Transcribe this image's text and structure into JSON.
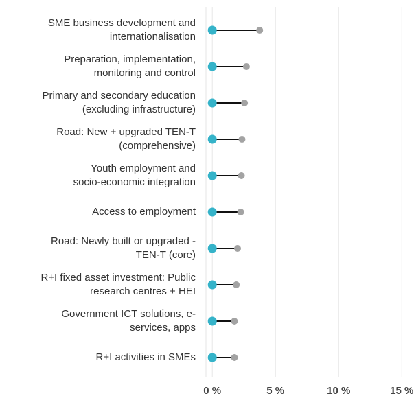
{
  "chart_data": {
    "type": "dumbbell",
    "categories": [
      [
        "SME business development and",
        "internationalisation"
      ],
      [
        "Preparation, implementation,",
        "monitoring and control"
      ],
      [
        "Primary and secondary education",
        "(excluding infrastructure)"
      ],
      [
        "Road: New + upgraded TEN-T",
        "(comprehensive)"
      ],
      [
        "Youth employment and",
        "socio-economic integration"
      ],
      [
        "Access to employment"
      ],
      [
        "Road: Newly built or upgraded -",
        "TEN-T (core)"
      ],
      [
        "R+I fixed asset investment: Public",
        "research centres + HEI"
      ],
      [
        "Government ICT solutions, e-",
        "services, apps"
      ],
      [
        "R+I activities in SMEs"
      ]
    ],
    "series": [
      {
        "color": "#35b3c9",
        "values": [
          0,
          0,
          0,
          0,
          0,
          0,
          0,
          0,
          0,
          0
        ]
      },
      {
        "color": "#a3a3a3",
        "values": [
          3.75,
          2.7,
          2.55,
          2.35,
          2.3,
          2.25,
          2.0,
          1.9,
          1.75,
          1.75
        ]
      }
    ],
    "line_color": "#111111",
    "xlim": [
      -0.5,
      15.8
    ],
    "xticks": [
      {
        "value": 0,
        "label": "0 %"
      },
      {
        "value": 5,
        "label": "5 %"
      },
      {
        "value": 10,
        "label": "10 %"
      },
      {
        "value": 15,
        "label": "15 %"
      }
    ],
    "grid": true
  }
}
